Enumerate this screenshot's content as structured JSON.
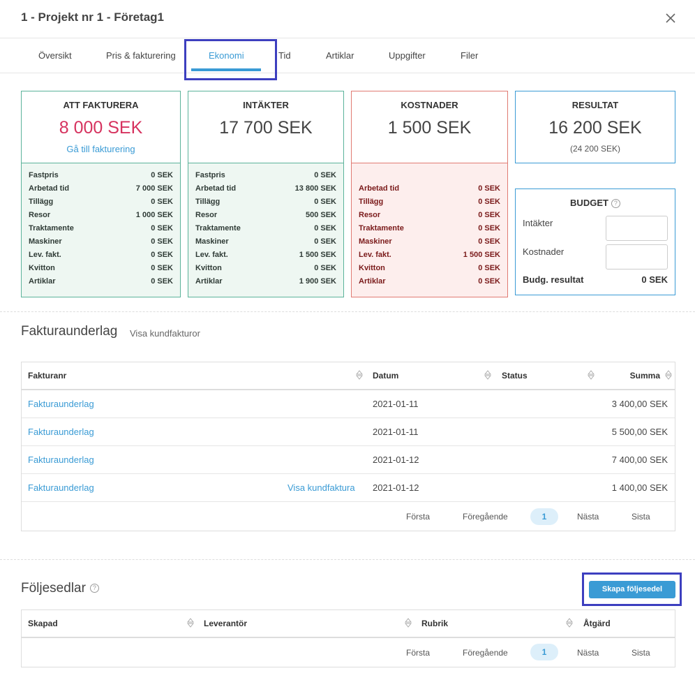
{
  "header": {
    "title": "1 - Projekt nr 1 - Företag1"
  },
  "tabs": [
    {
      "label": "Översikt"
    },
    {
      "label": "Pris & fakturering"
    },
    {
      "label": "Ekonomi"
    },
    {
      "label": "Tid"
    },
    {
      "label": "Artiklar"
    },
    {
      "label": "Uppgifter"
    },
    {
      "label": "Filer"
    }
  ],
  "active_tab": "Ekonomi",
  "colors": {
    "accent": "#3a9bd5",
    "pink_amount": "#d6335f",
    "green_border": "#5bb39a",
    "red_border": "#e07a72",
    "highlight": "#3d3fbf"
  },
  "cards": {
    "att_fakturera": {
      "title": "ATT FAKTURERA",
      "amount": "8 000 SEK",
      "link": "Gå till fakturering",
      "rows": [
        {
          "label": "Fastpris",
          "value": "0 SEK"
        },
        {
          "label": "Arbetad tid",
          "value": "7 000 SEK"
        },
        {
          "label": "Tillägg",
          "value": "0 SEK"
        },
        {
          "label": "Resor",
          "value": "1 000 SEK"
        },
        {
          "label": "Traktamente",
          "value": "0 SEK"
        },
        {
          "label": "Maskiner",
          "value": "0 SEK"
        },
        {
          "label": "Lev. fakt.",
          "value": "0 SEK"
        },
        {
          "label": "Kvitton",
          "value": "0 SEK"
        },
        {
          "label": "Artiklar",
          "value": "0 SEK"
        }
      ]
    },
    "intakter": {
      "title": "INTÄKTER",
      "amount": "17 700 SEK",
      "rows": [
        {
          "label": "Fastpris",
          "value": "0 SEK"
        },
        {
          "label": "Arbetad tid",
          "value": "13 800 SEK"
        },
        {
          "label": "Tillägg",
          "value": "0 SEK"
        },
        {
          "label": "Resor",
          "value": "500 SEK"
        },
        {
          "label": "Traktamente",
          "value": "0 SEK"
        },
        {
          "label": "Maskiner",
          "value": "0 SEK"
        },
        {
          "label": "Lev. fakt.",
          "value": "1 500 SEK"
        },
        {
          "label": "Kvitton",
          "value": "0 SEK"
        },
        {
          "label": "Artiklar",
          "value": "1 900 SEK"
        }
      ]
    },
    "kostnader": {
      "title": "KOSTNADER",
      "amount": "1 500 SEK",
      "rows": [
        {
          "label": "Arbetad tid",
          "value": "0 SEK"
        },
        {
          "label": "Tillägg",
          "value": "0 SEK"
        },
        {
          "label": "Resor",
          "value": "0 SEK"
        },
        {
          "label": "Traktamente",
          "value": "0 SEK"
        },
        {
          "label": "Maskiner",
          "value": "0 SEK"
        },
        {
          "label": "Lev. fakt.",
          "value": "1 500 SEK"
        },
        {
          "label": "Kvitton",
          "value": "0 SEK"
        },
        {
          "label": "Artiklar",
          "value": "0 SEK"
        }
      ]
    },
    "resultat": {
      "title": "RESULTAT",
      "amount": "16 200 SEK",
      "sub": "(24 200 SEK)"
    }
  },
  "budget": {
    "title": "BUDGET",
    "help": "?",
    "intakter_label": "Intäkter",
    "intakter_value": "",
    "kostnader_label": "Kostnader",
    "kostnader_value": "",
    "result_label": "Budg. resultat",
    "result_value": "0 SEK"
  },
  "fakturaunderlag": {
    "title": "Fakturaunderlag",
    "link": "Visa kundfakturor",
    "columns": [
      "Fakturanr",
      "Datum",
      "Status",
      "Summa"
    ],
    "rows": [
      {
        "nr": "Fakturaunderlag",
        "extra": "",
        "datum": "2021-01-11",
        "status": "",
        "summa": "3 400,00 SEK"
      },
      {
        "nr": "Fakturaunderlag",
        "extra": "",
        "datum": "2021-01-11",
        "status": "",
        "summa": "5 500,00 SEK"
      },
      {
        "nr": "Fakturaunderlag",
        "extra": "",
        "datum": "2021-01-12",
        "status": "",
        "summa": "7 400,00 SEK"
      },
      {
        "nr": "Fakturaunderlag",
        "extra": "Visa kundfaktura",
        "datum": "2021-01-12",
        "status": "",
        "summa": "1 400,00 SEK"
      }
    ],
    "pagination": {
      "first": "Första",
      "prev": "Föregående",
      "current": "1",
      "next": "Nästa",
      "last": "Sista"
    }
  },
  "foljesedlar": {
    "title": "Följesedlar",
    "help": "?",
    "create_button": "Skapa följesedel",
    "columns": [
      "Skapad",
      "Leverantör",
      "Rubrik",
      "Åtgärd"
    ],
    "pagination": {
      "first": "Första",
      "prev": "Föregående",
      "current": "1",
      "next": "Nästa",
      "last": "Sista"
    }
  }
}
